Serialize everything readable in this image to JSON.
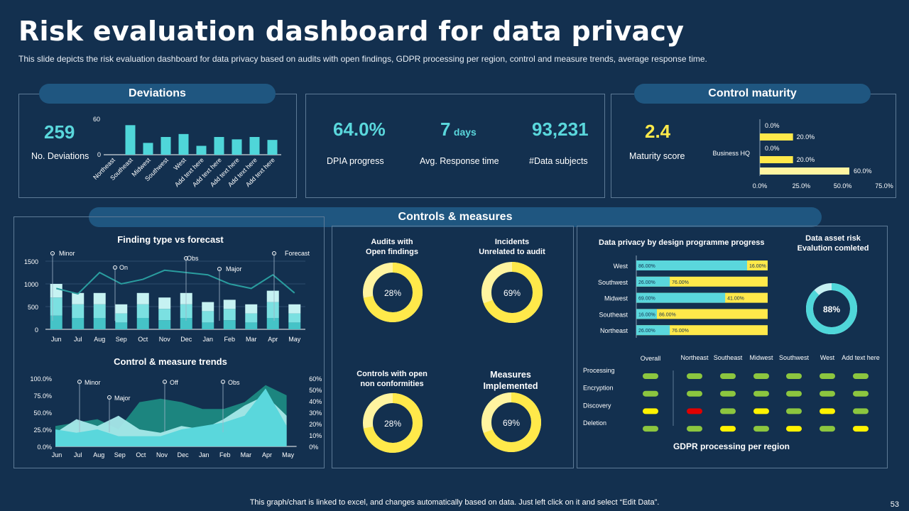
{
  "header": {
    "title": "Risk evaluation dashboard for data privacy",
    "subtitle": "This slide depicts the risk evaluation dashboard for data privacy  based on audits with open findings, GDPR processing per region, control and measure trends, average response time."
  },
  "deviations": {
    "pill": "Deviations",
    "count": "259",
    "count_label": "No. Deviations",
    "chart_data": {
      "type": "bar",
      "categories": [
        "Northeast",
        "Southeast",
        "Midwest",
        "Southwest",
        "West",
        "Add text here",
        "Add text here",
        "Add text here",
        "Add text here",
        "Add text here"
      ],
      "values": [
        0,
        50,
        20,
        30,
        35,
        15,
        30,
        26,
        30,
        25
      ],
      "ylim": [
        0,
        60
      ],
      "yticks": [
        "60",
        "0"
      ]
    }
  },
  "kpis": {
    "dpia_value": "64.0%",
    "dpia_label": "DPIA progress",
    "response_value": "7",
    "response_unit": "days",
    "response_label": "Avg. Response time",
    "subjects_value": "93,231",
    "subjects_label": "#Data subjects"
  },
  "control_maturity": {
    "pill": "Control maturity",
    "score": "2.4",
    "score_label": "Maturity score",
    "chart_data": {
      "type": "bar",
      "orientation": "horizontal",
      "category": "Business HQ",
      "values": [
        0,
        20,
        0,
        20,
        60
      ],
      "value_labels": [
        "0.0%",
        "20.0%",
        "0.0%",
        "20.0%",
        "60.0%"
      ],
      "xlim": [
        0,
        75
      ],
      "xticks": [
        "0.0%",
        "25.0%",
        "50.0%",
        "75.0%"
      ]
    }
  },
  "controls_pill": "Controls & measures",
  "finding_chart": {
    "title": "Finding type vs forecast",
    "chart_data": {
      "type": "bar",
      "stacked": true,
      "categories": [
        "Jun",
        "Jul",
        "Aug",
        "Sep",
        "Oct",
        "Nov",
        "Dec",
        "Jan",
        "Feb",
        "Mar",
        "Apr",
        "May"
      ],
      "series": [
        {
          "name": "Minor",
          "values": [
            300,
            250,
            250,
            150,
            250,
            200,
            250,
            150,
            200,
            150,
            250,
            150
          ]
        },
        {
          "name": "Major",
          "values": [
            400,
            300,
            300,
            200,
            300,
            250,
            300,
            250,
            250,
            200,
            350,
            200
          ]
        },
        {
          "name": "On",
          "values": [
            300,
            250,
            250,
            200,
            250,
            250,
            250,
            200,
            200,
            200,
            250,
            200
          ]
        }
      ],
      "forecast": [
        900,
        780,
        1250,
        1000,
        1100,
        1300,
        1250,
        1200,
        1000,
        900,
        1200,
        800
      ],
      "ylim": [
        0,
        1500
      ],
      "yticks": [
        "1500",
        "1000",
        "500",
        "0"
      ],
      "annotations": [
        "Minor",
        "Obs",
        "On",
        "Major",
        "Forecast"
      ]
    }
  },
  "trend_chart": {
    "title": "Control & measure trends",
    "chart_data": {
      "type": "area",
      "categories": [
        "Jun",
        "Jul",
        "Aug",
        "Sep",
        "Oct",
        "Nov",
        "Dec",
        "Jan",
        "Feb",
        "Mar",
        "Apr",
        "May"
      ],
      "series": [
        {
          "name": "Off",
          "values": [
            30,
            35,
            40,
            25,
            65,
            70,
            65,
            55,
            55,
            65,
            90,
            75
          ]
        },
        {
          "name": "Obs",
          "values": [
            20,
            40,
            30,
            45,
            25,
            20,
            30,
            25,
            40,
            60,
            75,
            45
          ]
        },
        {
          "name": "Major",
          "values": [
            25,
            20,
            25,
            15,
            15,
            15,
            25,
            30,
            35,
            45,
            85,
            30
          ]
        }
      ],
      "left_ticks": [
        "100.0%",
        "75.0%",
        "50.0%",
        "25.0%",
        "0.0%"
      ],
      "right_ticks": [
        "60%",
        "50%",
        "40%",
        "30%",
        "20%",
        "10%",
        "0%"
      ],
      "annotations": [
        "Minor",
        "Off",
        "Obs",
        "Major"
      ]
    }
  },
  "donuts": {
    "audits": {
      "title1": "Audits with",
      "title2": "Open findings",
      "value": 28,
      "label": "28%"
    },
    "incidents": {
      "title1": "Incidents",
      "title2": "Unrelated to audit",
      "value": 69,
      "label": "69%"
    },
    "controls": {
      "title1": "Controls with open",
      "title2": "non conformities",
      "value": 28,
      "label": "28%"
    },
    "measures": {
      "title1": "Measures",
      "title2": "Implemented",
      "value": 69,
      "label": "69%"
    },
    "asset": {
      "title1": "Data asset risk",
      "title2": "Evalution comleted",
      "value": 88,
      "label": "88%"
    }
  },
  "programme": {
    "title": "Data privacy by design programme progress",
    "chart_data": {
      "type": "bar",
      "orientation": "horizontal",
      "stacked": true,
      "categories": [
        "West",
        "Southwest",
        "Midwest",
        "Southeast",
        "Northeast"
      ],
      "series": [
        {
          "name": "Completed",
          "values": [
            86,
            26,
            69,
            16,
            26
          ],
          "labels": [
            "86.00%",
            "26.00%",
            "69.00%",
            "16.00%",
            "26.00%"
          ]
        },
        {
          "name": "Remaining",
          "values": [
            16,
            76,
            41,
            86,
            76
          ],
          "labels": [
            "16.00%",
            "76.00%",
            "41.00%",
            "86.00%",
            "76.00%"
          ]
        }
      ]
    }
  },
  "gdpr": {
    "title": "GDPR processing per region",
    "columns": [
      "Overall",
      "Northeast",
      "Southeast",
      "Midwest",
      "Southwest",
      "West",
      "Add text here"
    ],
    "rows": [
      "Processing",
      "Encryption",
      "Discovery",
      "Deletion"
    ],
    "status": [
      [
        "green",
        "green",
        "green",
        "green",
        "green",
        "green",
        "green"
      ],
      [
        "green",
        "green",
        "green",
        "green",
        "green",
        "green",
        "green"
      ],
      [
        "yellow",
        "red",
        "green",
        "yellow",
        "green",
        "yellow",
        "green"
      ],
      [
        "green",
        "green",
        "yellow",
        "green",
        "yellow",
        "green",
        "yellow"
      ]
    ],
    "colors": {
      "green": "#8cc63f",
      "yellow": "#fff200",
      "red": "#e00000"
    }
  },
  "footer": {
    "note": "This graph/chart is linked to excel,  and changes automatically based on data. Just left click on it and select “Edit Data”.",
    "page": "53"
  },
  "colors": {
    "accent": "#5ad7dc",
    "yellow": "#ffe94a",
    "bg": "#13304f",
    "pill": "#1f5680"
  }
}
